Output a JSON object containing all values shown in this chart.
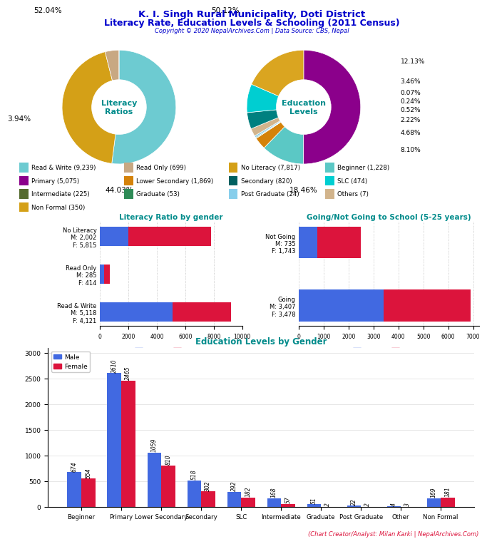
{
  "title_line1": "K. I. Singh Rural Municipality, Doti District",
  "title_line2": "Literacy Rate, Education Levels & Schooling (2011 Census)",
  "copyright": "Copyright © 2020 NepalArchives.Com | Data Source: CBS, Nepal",
  "title_color": "#0000cc",
  "subtitle_color": "#0000cc",
  "copyright_color": "#0000cc",
  "literacy_pie": {
    "values": [
      52.04,
      44.03,
      3.94,
      0.0
    ],
    "pct_labels": [
      "52.04%",
      "44.03%",
      "3.94%",
      ""
    ],
    "colors": [
      "#6dcbd1",
      "#d4a017",
      "#c8a882",
      "#e8d5a0"
    ],
    "center_text": "Literacy\nRatios"
  },
  "education_pie": {
    "values": [
      50.12,
      12.13,
      3.46,
      0.07,
      0.24,
      0.52,
      2.22,
      4.68,
      8.1,
      18.46
    ],
    "pct_labels": [
      "50.12%",
      "12.13%",
      "3.46%",
      "0.07%",
      "0.24%",
      "0.52%",
      "2.22%",
      "4.68%",
      "8.10%",
      "18.46%"
    ],
    "colors": [
      "#8B008B",
      "#5bc8c5",
      "#d4820a",
      "#556B2F",
      "#2E8B57",
      "#87CEEB",
      "#D2B48C",
      "#008080",
      "#00CED1",
      "#DAA520"
    ],
    "center_text": "Education\nLevels",
    "right_labels": [
      "12.13%",
      "3.46%",
      "0.07%",
      "0.24%",
      "0.52%",
      "2.22%",
      "4.68%",
      "8.10%"
    ],
    "right_label_indices": [
      1,
      2,
      3,
      4,
      5,
      6,
      7,
      8
    ]
  },
  "legend_items": [
    {
      "label": "Read & Write (9,239)",
      "color": "#6dcbd1"
    },
    {
      "label": "Read Only (699)",
      "color": "#c8a882"
    },
    {
      "label": "No Literacy (7,817)",
      "color": "#d4a017"
    },
    {
      "label": "Beginner (1,228)",
      "color": "#5bc8c5"
    },
    {
      "label": "Primary (5,075)",
      "color": "#8B008B"
    },
    {
      "label": "Lower Secondary (1,869)",
      "color": "#d4820a"
    },
    {
      "label": "Secondary (820)",
      "color": "#006060"
    },
    {
      "label": "SLC (474)",
      "color": "#00CED1"
    },
    {
      "label": "Intermediate (225)",
      "color": "#556B2F"
    },
    {
      "label": "Graduate (53)",
      "color": "#2E8B57"
    },
    {
      "label": "Post Graduate (24)",
      "color": "#87CEEB"
    },
    {
      "label": "Others (7)",
      "color": "#D2B48C"
    },
    {
      "label": "Non Formal (350)",
      "color": "#d4a017"
    }
  ],
  "literacy_bar": {
    "categories": [
      "Read & Write\nM: 5,118\nF: 4,121",
      "Read Only\nM: 285\nF: 414",
      "No Literacy\nM: 2,002\nF: 5,815"
    ],
    "male": [
      5118,
      285,
      2002
    ],
    "female": [
      4121,
      414,
      5815
    ],
    "male_color": "#4169E1",
    "female_color": "#DC143C",
    "title": "Literacy Ratio by gender",
    "title_color": "#008B8B"
  },
  "school_bar": {
    "categories": [
      "Going\nM: 3,407\nF: 3,478",
      "Not Going\nM: 735\nF: 1,743"
    ],
    "male": [
      3407,
      735
    ],
    "female": [
      3478,
      1743
    ],
    "male_color": "#4169E1",
    "female_color": "#DC143C",
    "title": "Going/Not Going to School (5-25 years)",
    "title_color": "#008B8B"
  },
  "edu_bar": {
    "categories": [
      "Beginner",
      "Primary",
      "Lower Secondary",
      "Secondary",
      "SLC",
      "Intermediate",
      "Graduate",
      "Post Graduate",
      "Other",
      "Non Formal"
    ],
    "male": [
      674,
      2610,
      1059,
      518,
      292,
      168,
      51,
      22,
      4,
      169
    ],
    "female": [
      554,
      2465,
      810,
      302,
      182,
      57,
      2,
      2,
      3,
      181
    ],
    "male_color": "#4169E1",
    "female_color": "#DC143C",
    "title": "Education Levels by Gender",
    "title_color": "#008B8B"
  },
  "analyst_text": "(Chart Creator/Analyst: Milan Karki | NepalArchives.Com)",
  "analyst_color": "#DC143C",
  "background_color": "#ffffff"
}
